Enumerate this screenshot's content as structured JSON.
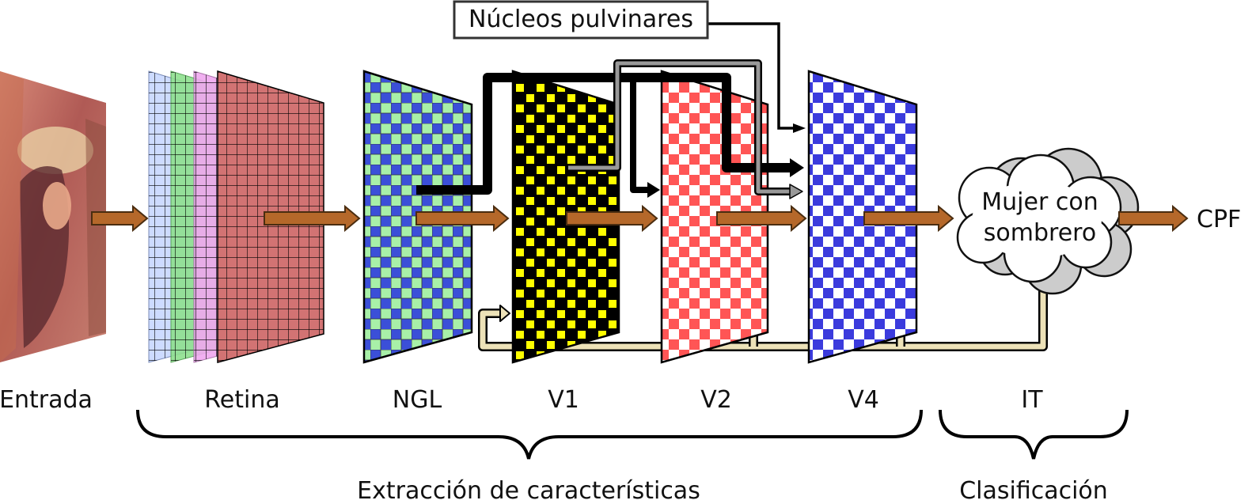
{
  "labels": {
    "entrada": "Entrada",
    "retina": "Retina",
    "ngl": "NGL",
    "v1": "V1",
    "v2": "V2",
    "v4": "V4",
    "it": "IT",
    "cpf": "CPF",
    "pulvinar": "Núcleos pulvinares",
    "cloud_line1": "Mujer con",
    "cloud_line2": "sombrero",
    "feature_extraction": "Extracción de características",
    "classification": "Clasificación"
  },
  "colors": {
    "feedforward_arrow": "#b5682a",
    "feedback_path": "#ede2b8",
    "ngl_checker": [
      "#3b4fd8",
      "#a8f0a8"
    ],
    "v1_checker": [
      "#ffff00",
      "#000000"
    ],
    "v2_checker": [
      "#ff5555",
      "#ffffff"
    ],
    "v4_checker": [
      "#3b3bdd",
      "#ffffff"
    ],
    "retina_layers": [
      "#c8d8ff",
      "#8ee08e",
      "#f0a8f0",
      "#d86a6a"
    ]
  }
}
